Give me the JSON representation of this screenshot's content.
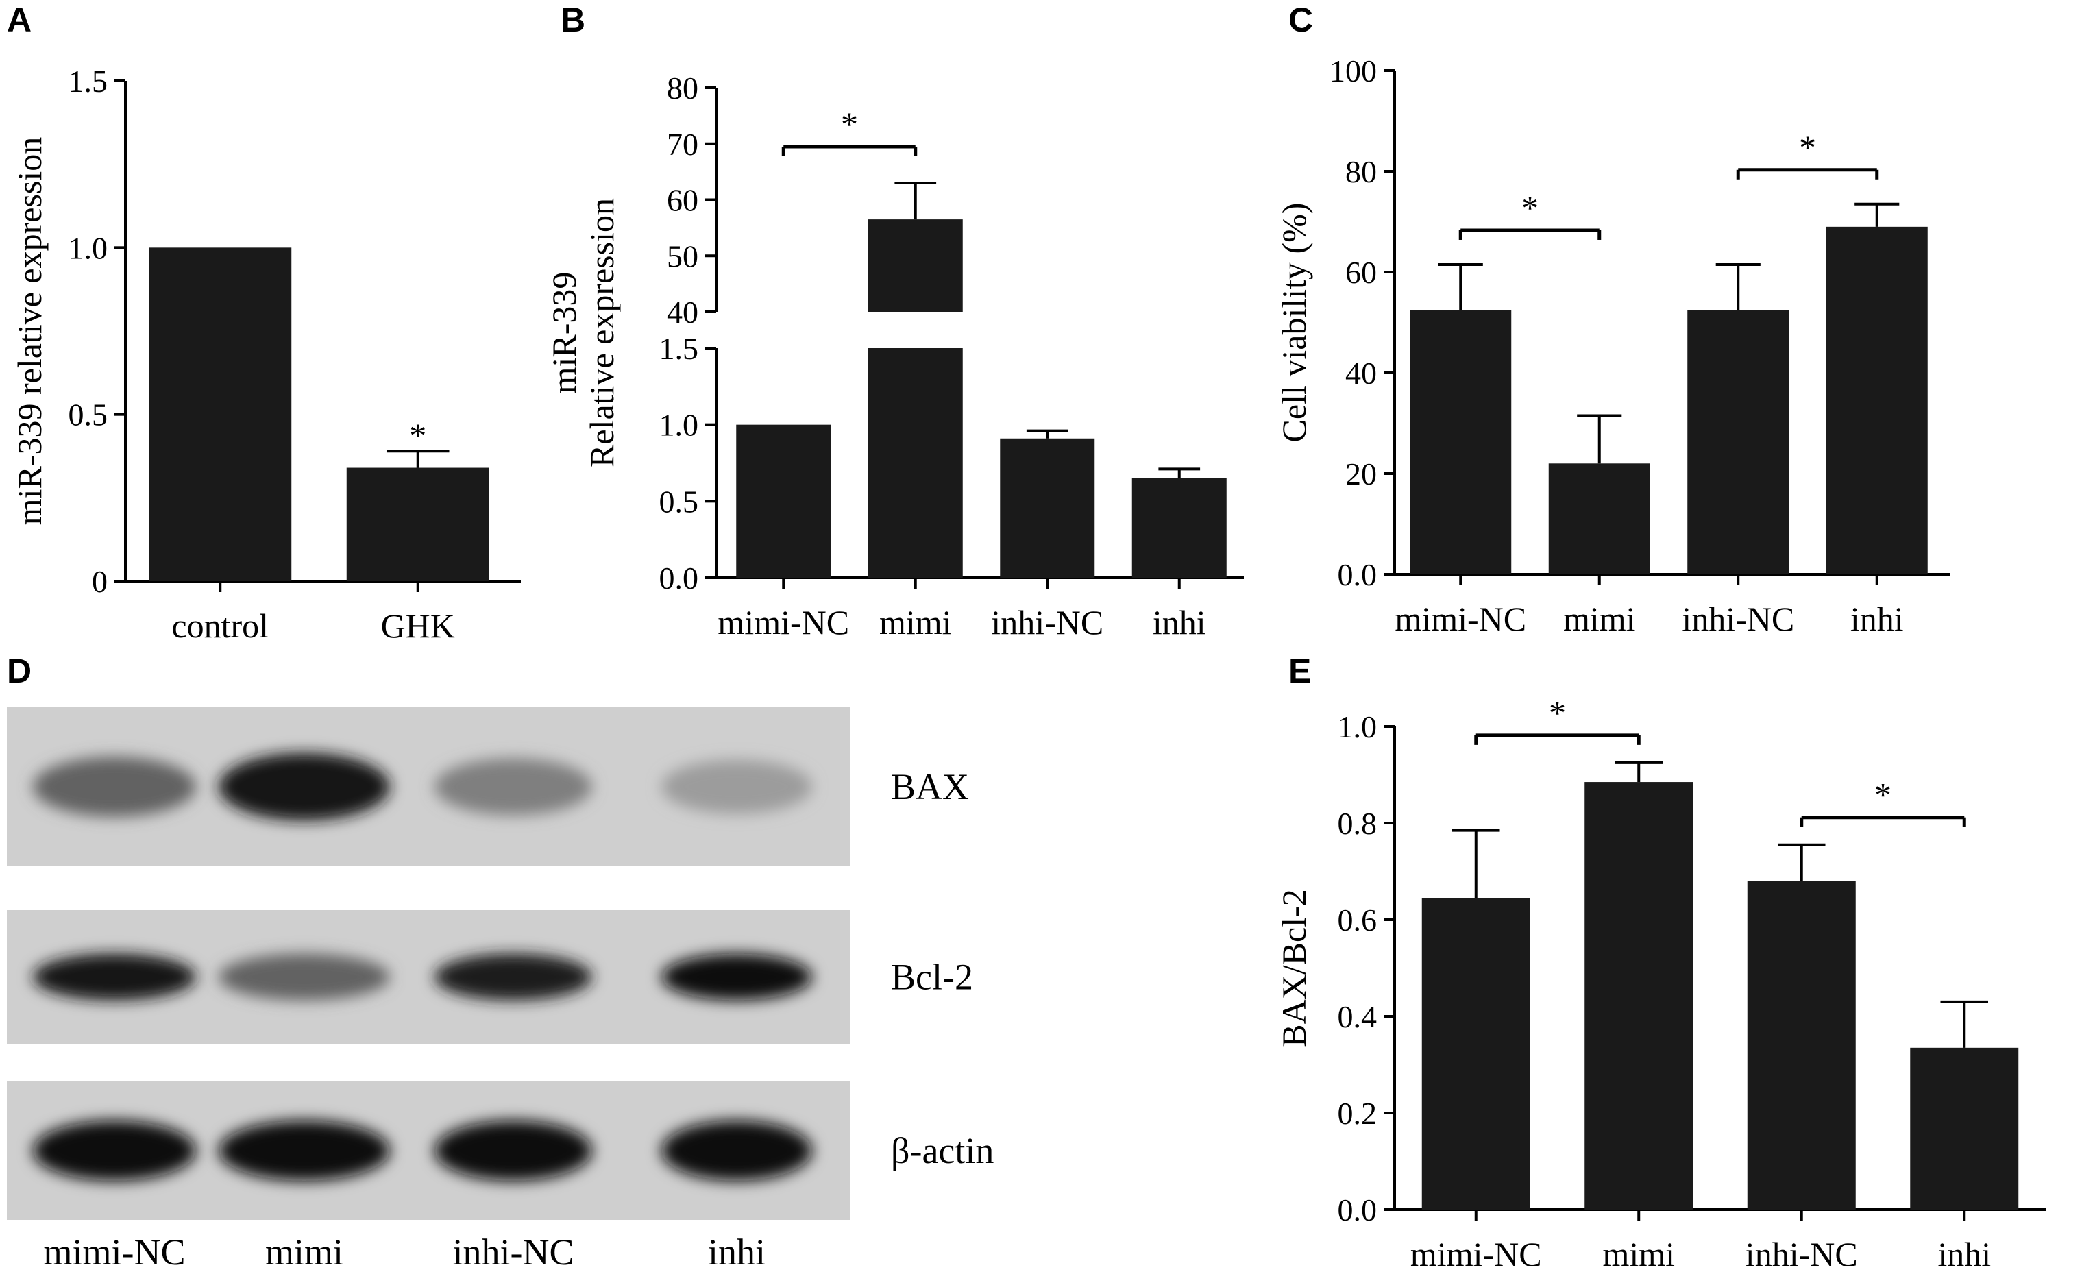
{
  "panel_letters": [
    "A",
    "B",
    "C",
    "D",
    "E"
  ],
  "colors": {
    "bar": "#1a1a1a",
    "axis": "#000000"
  },
  "chart_data": [
    {
      "panel": "A",
      "type": "bar",
      "categories": [
        "control",
        "GHK"
      ],
      "values": [
        1.0,
        0.34
      ],
      "errors": [
        0.0,
        0.05
      ],
      "ylabel": "miR-339 relative expression",
      "ylim": [
        0,
        1.5
      ],
      "yticks": [
        "0",
        "0.5",
        "1.0",
        "1.5"
      ],
      "significance": [
        {
          "bar": 1,
          "label": "*"
        }
      ]
    },
    {
      "panel": "B",
      "type": "bar",
      "categories": [
        "mimi-NC",
        "mimi",
        "inhi-NC",
        "inhi"
      ],
      "values": [
        1.0,
        56.5,
        0.91,
        0.65
      ],
      "errors": [
        0.0,
        6.5,
        0.05,
        0.06
      ],
      "ylabel": "miR-339 Relative expression",
      "ylabel_lines": [
        "miR-339",
        "Relative expression"
      ],
      "broken_axis": true,
      "ylim_lower": [
        0,
        1.5
      ],
      "yticks_lower": [
        "0.0",
        "0.5",
        "1.0",
        "1.5"
      ],
      "ylim_upper": [
        40,
        80
      ],
      "yticks_upper": [
        "40",
        "50",
        "60",
        "70",
        "80"
      ],
      "significance": [
        {
          "from": 0,
          "to": 1,
          "label": "*"
        }
      ]
    },
    {
      "panel": "C",
      "type": "bar",
      "categories": [
        "mimi-NC",
        "mimi",
        "inhi-NC",
        "inhi"
      ],
      "values": [
        52.5,
        22,
        52.5,
        69
      ],
      "errors": [
        9,
        9.5,
        9,
        4.5
      ],
      "ylabel": "Cell viability (%)",
      "ylim": [
        0,
        100
      ],
      "yticks": [
        "0.0",
        "20",
        "40",
        "60",
        "80",
        "100"
      ],
      "significance": [
        {
          "from": 0,
          "to": 1,
          "label": "*"
        },
        {
          "from": 2,
          "to": 3,
          "label": "*"
        }
      ]
    },
    {
      "panel": "E",
      "type": "bar",
      "categories": [
        "mimi-NC",
        "mimi",
        "inhi-NC",
        "inhi"
      ],
      "values": [
        0.645,
        0.885,
        0.68,
        0.335
      ],
      "errors": [
        0.14,
        0.04,
        0.075,
        0.095
      ],
      "ylabel": "BAX/Bcl-2",
      "ylim": [
        0,
        1.0
      ],
      "yticks": [
        "0.0",
        "0.2",
        "0.4",
        "0.6",
        "0.8",
        "1.0"
      ],
      "significance": [
        {
          "from": 0,
          "to": 1,
          "label": "*"
        },
        {
          "from": 2,
          "to": 3,
          "label": "*"
        }
      ]
    }
  ],
  "blot": {
    "panel": "D",
    "lanes": [
      "mimi-NC",
      "mimi",
      "inhi-NC",
      "inhi"
    ],
    "rows": [
      {
        "label": "BAX",
        "intensity": [
          0.55,
          0.95,
          0.4,
          0.25
        ]
      },
      {
        "label": "Bcl-2",
        "intensity": [
          0.95,
          0.55,
          0.9,
          1.0
        ]
      },
      {
        "label": "β-actin",
        "intensity": [
          1.0,
          1.0,
          1.0,
          1.0
        ]
      }
    ]
  }
}
